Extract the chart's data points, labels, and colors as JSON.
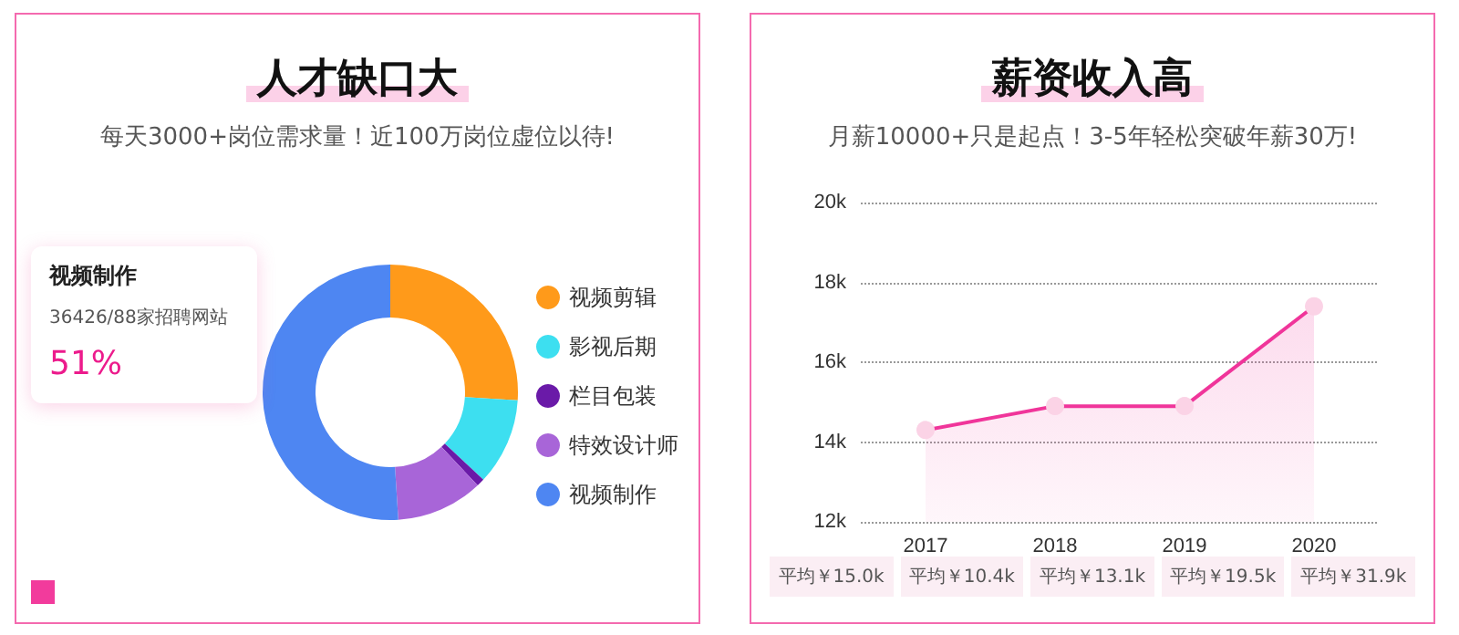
{
  "chart_data": [
    {
      "type": "donut",
      "title": "人才缺口大",
      "subtitle": "每天3000+岗位需求量！近100万岗位虚位以待!",
      "categories": [
        "视频剪辑",
        "影视后期",
        "栏目包装",
        "特效设计师",
        "视频制作"
      ],
      "values": [
        26,
        11,
        1,
        11,
        51
      ],
      "colors": [
        "#ff9a1a",
        "#3ddff0",
        "#6a1aa8",
        "#a865d8",
        "#4e86f2"
      ],
      "legend": "right",
      "annotations": [
        "视频制作",
        "36426/88家招聘网站",
        "51%"
      ]
    },
    {
      "type": "area",
      "title": "薪资收入高",
      "subtitle": "月薪10000+只是起点！3-5年轻松突破年薪30万!",
      "categories": [
        "2017",
        "2018",
        "2019",
        "2020"
      ],
      "values": [
        14300,
        14900,
        14900,
        17400
      ],
      "color": "#f0359a",
      "ylim": [
        12000,
        20000
      ],
      "yticks": [
        {
          "value": 12000,
          "label": "12k"
        },
        {
          "value": 14000,
          "label": "14k"
        },
        {
          "value": 16000,
          "label": "16k"
        },
        {
          "value": 18000,
          "label": "18k"
        },
        {
          "value": 20000,
          "label": "20k"
        }
      ],
      "grid": "y",
      "marker": "circle",
      "legend": false,
      "annotations": [
        "平均￥15.0k",
        "平均￥10.4k",
        "平均￥13.1k",
        "平均￥19.5k",
        "平均￥31.9k"
      ]
    }
  ]
}
